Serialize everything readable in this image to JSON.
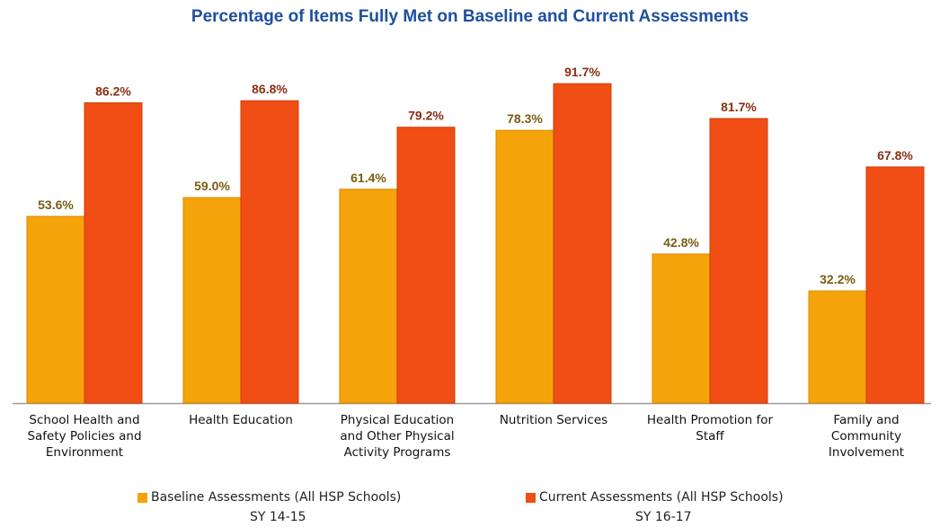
{
  "chart_data": {
    "type": "bar",
    "title": "Percentage of Items Fully Met on Baseline and Current Assessments",
    "categories": [
      [
        "School Health and",
        "Safety Policies and",
        "Environment"
      ],
      [
        "Health Education"
      ],
      [
        "Physical Education",
        "and Other Physical",
        "Activity Programs"
      ],
      [
        "Nutrition Services"
      ],
      [
        "Health Promotion for",
        "Staff"
      ],
      [
        "Family and",
        "Community",
        "Involvement"
      ]
    ],
    "series": [
      {
        "name": "Baseline Assessments (All HSP Schools)",
        "subtitle": "SY 14-15",
        "color": "#f5a30a",
        "values": [
          53.6,
          59.0,
          61.4,
          78.3,
          42.8,
          32.2
        ],
        "labels": [
          "53.6%",
          "59.0%",
          "61.4%",
          "78.3%",
          "42.8%",
          "32.2%"
        ],
        "label_color": "#7a5c10"
      },
      {
        "name": "Current Assessments (All HSP Schools)",
        "subtitle": "SY 16-17",
        "color": "#f04e14",
        "values": [
          86.2,
          86.8,
          79.2,
          91.7,
          81.7,
          67.8
        ],
        "labels": [
          "86.2%",
          "86.8%",
          "79.2%",
          "91.7%",
          "81.7%",
          "67.8%"
        ],
        "label_color": "#8a2f14"
      }
    ],
    "ylim": [
      0,
      100
    ],
    "grid": false,
    "legend_position": "bottom"
  }
}
